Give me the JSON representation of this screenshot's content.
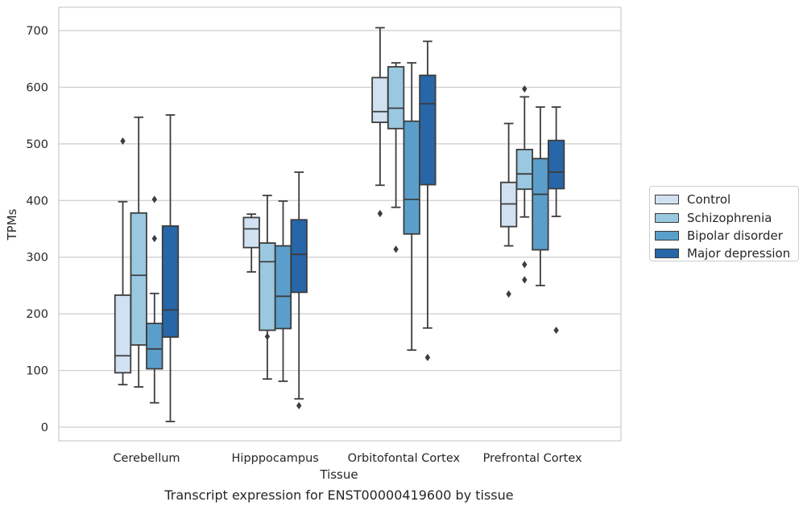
{
  "chart_data": {
    "type": "box",
    "title": "",
    "xlabel": "Tissue",
    "ylabel": "TPMs",
    "ylim": [
      -23,
      740
    ],
    "yticks": [
      0,
      100,
      200,
      300,
      400,
      500,
      600,
      700
    ],
    "grid": true,
    "legend_position": "right",
    "categories": [
      "Cerebellum",
      "Hipppocampus",
      "Orbitofontal Cortex",
      "Prefrontal Cortex"
    ],
    "series": [
      {
        "name": "Control",
        "color": "#d1e1f1",
        "boxes": [
          {
            "whisker_low": 75,
            "q1": 96,
            "median": 126,
            "q3": 233,
            "whisker_high": 398,
            "outliers": [
              505
            ]
          },
          {
            "whisker_low": 274,
            "q1": 317,
            "median": 350,
            "q3": 370,
            "whisker_high": 376,
            "outliers": []
          },
          {
            "whisker_low": 427,
            "q1": 538,
            "median": 557,
            "q3": 617,
            "whisker_high": 705,
            "outliers": [
              377
            ]
          },
          {
            "whisker_low": 320,
            "q1": 354,
            "median": 394,
            "q3": 432,
            "whisker_high": 536,
            "outliers": [
              235
            ]
          }
        ]
      },
      {
        "name": "Schizophrenia",
        "color": "#9ac8e0",
        "boxes": [
          {
            "whisker_low": 71,
            "q1": 145,
            "median": 268,
            "q3": 378,
            "whisker_high": 547,
            "outliers": []
          },
          {
            "whisker_low": 85,
            "q1": 171,
            "median": 292,
            "q3": 325,
            "whisker_high": 409,
            "outliers": [
              160
            ]
          },
          {
            "whisker_low": 388,
            "q1": 527,
            "median": 563,
            "q3": 636,
            "whisker_high": 643,
            "outliers": [
              314
            ]
          },
          {
            "whisker_low": 371,
            "q1": 420,
            "median": 447,
            "q3": 490,
            "whisker_high": 583,
            "outliers": [
              597,
              287,
              260
            ]
          }
        ]
      },
      {
        "name": "Bipolar disorder",
        "color": "#5a9fcb",
        "boxes": [
          {
            "whisker_low": 43,
            "q1": 103,
            "median": 138,
            "q3": 183,
            "whisker_high": 236,
            "outliers": [
              402,
              333
            ]
          },
          {
            "whisker_low": 81,
            "q1": 174,
            "median": 231,
            "q3": 320,
            "whisker_high": 399,
            "outliers": []
          },
          {
            "whisker_low": 136,
            "q1": 341,
            "median": 402,
            "q3": 540,
            "whisker_high": 643,
            "outliers": []
          },
          {
            "whisker_low": 250,
            "q1": 313,
            "median": 411,
            "q3": 474,
            "whisker_high": 565,
            "outliers": []
          }
        ]
      },
      {
        "name": "Major depression",
        "color": "#2766a9",
        "boxes": [
          {
            "whisker_low": 10,
            "q1": 159,
            "median": 207,
            "q3": 355,
            "whisker_high": 551,
            "outliers": []
          },
          {
            "whisker_low": 50,
            "q1": 238,
            "median": 305,
            "q3": 366,
            "whisker_high": 450,
            "outliers": [
              38
            ]
          },
          {
            "whisker_low": 175,
            "q1": 428,
            "median": 571,
            "q3": 621,
            "whisker_high": 681,
            "outliers": [
              123
            ]
          },
          {
            "whisker_low": 372,
            "q1": 421,
            "median": 450,
            "q3": 506,
            "whisker_high": 565,
            "outliers": [
              171
            ]
          }
        ]
      }
    ]
  },
  "caption": "Transcript expression for ENST00000419600 by tissue"
}
